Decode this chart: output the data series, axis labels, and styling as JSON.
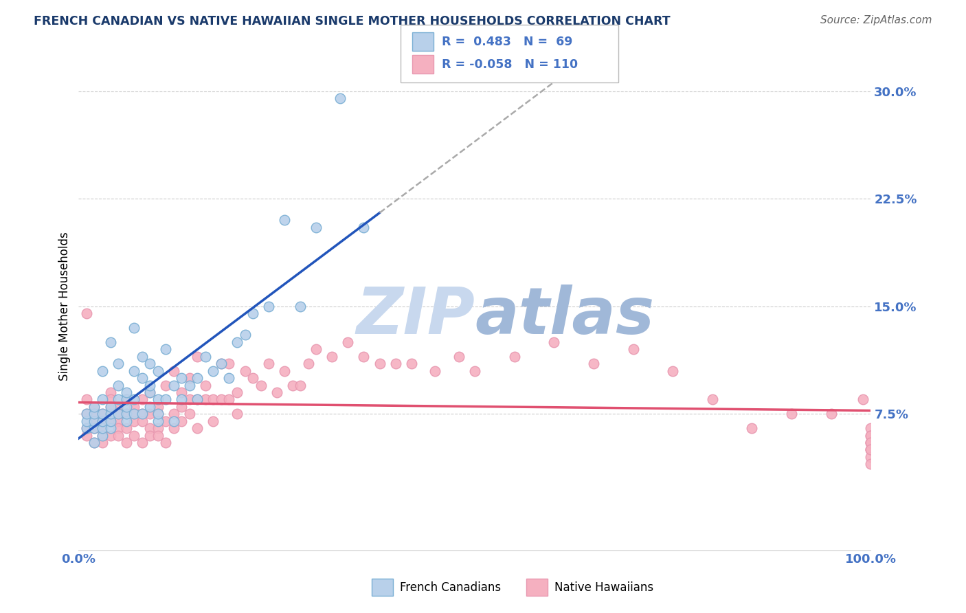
{
  "title": "FRENCH CANADIAN VS NATIVE HAWAIIAN SINGLE MOTHER HOUSEHOLDS CORRELATION CHART",
  "source_text": "Source: ZipAtlas.com",
  "ylabel": "Single Mother Households",
  "xlim": [
    0,
    100
  ],
  "ylim": [
    -2,
    32
  ],
  "yticks": [
    0,
    7.5,
    15.0,
    22.5,
    30.0
  ],
  "ytick_labels": [
    "",
    "7.5%",
    "15.0%",
    "22.5%",
    "30.0%"
  ],
  "blue_line_color": "#2255BB",
  "pink_line_color": "#E05070",
  "blue_dot_face": "#b8d0ea",
  "pink_dot_face": "#f5b0c0",
  "blue_dot_edge": "#7aafd4",
  "pink_dot_edge": "#e898b0",
  "title_color": "#1a3a6b",
  "source_color": "#666666",
  "axis_tick_color": "#4472C4",
  "grid_color": "#cccccc",
  "watermark_color_zip": "#c8d8ee",
  "watermark_color_atlas": "#a0b8d8",
  "french_canadian_x": [
    1,
    1,
    1,
    2,
    2,
    2,
    2,
    2,
    3,
    3,
    3,
    3,
    3,
    3,
    4,
    4,
    4,
    4,
    4,
    5,
    5,
    5,
    5,
    6,
    6,
    6,
    6,
    6,
    7,
    7,
    7,
    7,
    8,
    8,
    8,
    9,
    9,
    9,
    9,
    10,
    10,
    10,
    10,
    11,
    11,
    12,
    12,
    13,
    13,
    14,
    15,
    15,
    16,
    17,
    18,
    19,
    20,
    21,
    22,
    24,
    26,
    28,
    30,
    33,
    36
  ],
  "french_canadian_y": [
    6.5,
    7.0,
    7.5,
    5.5,
    6.5,
    7.0,
    7.5,
    8.0,
    6.0,
    6.5,
    7.0,
    7.5,
    8.5,
    10.5,
    6.5,
    7.0,
    7.5,
    8.0,
    12.5,
    7.5,
    8.5,
    9.5,
    11.0,
    7.0,
    7.5,
    8.0,
    8.5,
    9.0,
    7.5,
    8.5,
    10.5,
    13.5,
    7.5,
    10.0,
    11.5,
    8.0,
    9.0,
    9.5,
    11.0,
    7.0,
    7.5,
    8.5,
    10.5,
    8.5,
    12.0,
    7.0,
    9.5,
    8.5,
    10.0,
    9.5,
    8.5,
    10.0,
    11.5,
    10.5,
    11.0,
    10.0,
    12.5,
    13.0,
    14.5,
    15.0,
    21.0,
    15.0,
    20.5,
    29.5,
    20.5
  ],
  "native_hawaiian_x": [
    1,
    1,
    1,
    1,
    1,
    2,
    2,
    2,
    2,
    2,
    3,
    3,
    3,
    3,
    3,
    4,
    4,
    4,
    4,
    4,
    5,
    5,
    5,
    5,
    5,
    6,
    6,
    6,
    6,
    7,
    7,
    7,
    7,
    8,
    8,
    8,
    8,
    9,
    9,
    9,
    9,
    10,
    10,
    10,
    10,
    11,
    11,
    11,
    12,
    12,
    12,
    13,
    13,
    13,
    14,
    14,
    14,
    15,
    15,
    15,
    16,
    16,
    17,
    17,
    18,
    18,
    19,
    19,
    20,
    20,
    21,
    22,
    23,
    24,
    25,
    26,
    27,
    28,
    29,
    30,
    32,
    34,
    36,
    38,
    40,
    42,
    45,
    48,
    50,
    55,
    60,
    65,
    70,
    75,
    80,
    85,
    90,
    95,
    99,
    100,
    100,
    100,
    100,
    100,
    100,
    100,
    100,
    100,
    100,
    100
  ],
  "native_hawaiian_y": [
    14.5,
    8.5,
    7.5,
    6.5,
    6.0,
    8.0,
    7.5,
    7.0,
    6.5,
    5.5,
    7.5,
    7.0,
    6.5,
    6.0,
    5.5,
    9.0,
    8.5,
    8.0,
    7.0,
    6.0,
    8.0,
    7.5,
    7.0,
    6.5,
    6.0,
    8.5,
    7.5,
    6.5,
    5.5,
    8.0,
    7.5,
    7.0,
    6.0,
    8.5,
    7.5,
    7.0,
    5.5,
    9.0,
    7.5,
    6.5,
    6.0,
    8.0,
    7.5,
    6.5,
    6.0,
    9.5,
    7.0,
    5.5,
    10.5,
    7.5,
    6.5,
    9.0,
    8.0,
    7.0,
    10.0,
    8.5,
    7.5,
    11.5,
    8.5,
    6.5,
    9.5,
    8.5,
    8.5,
    7.0,
    11.0,
    8.5,
    11.0,
    8.5,
    9.0,
    7.5,
    10.5,
    10.0,
    9.5,
    11.0,
    9.0,
    10.5,
    9.5,
    9.5,
    11.0,
    12.0,
    11.5,
    12.5,
    11.5,
    11.0,
    11.0,
    11.0,
    10.5,
    11.5,
    10.5,
    11.5,
    12.5,
    11.0,
    12.0,
    10.5,
    8.5,
    6.5,
    7.5,
    7.5,
    8.5,
    6.5,
    5.5,
    5.0,
    6.0,
    5.5,
    5.0,
    4.5,
    4.0,
    6.0,
    5.5,
    5.0
  ]
}
